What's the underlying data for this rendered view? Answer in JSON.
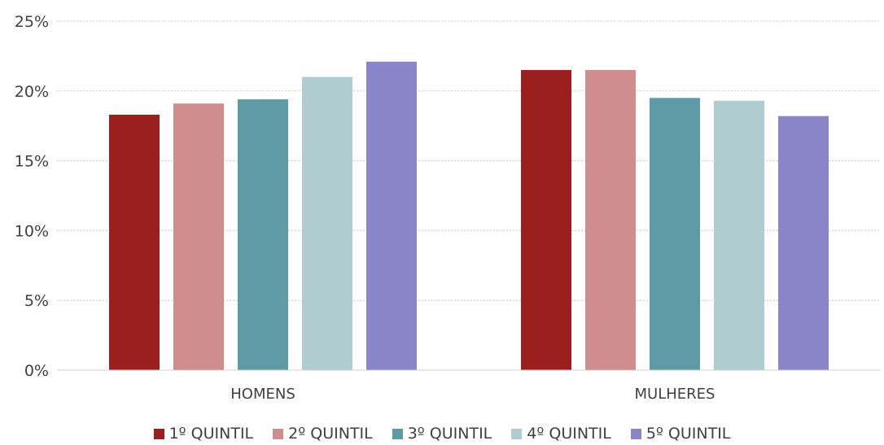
{
  "chart_data": {
    "type": "bar",
    "categories": [
      "HOMENS",
      "MULHERES"
    ],
    "series": [
      {
        "name": "1º QUINTIL",
        "color": "#9B1F1F",
        "values": [
          18.3,
          21.5
        ]
      },
      {
        "name": "2º QUINTIL",
        "color": "#CF8D8B",
        "values": [
          19.1,
          21.5
        ]
      },
      {
        "name": "3º QUINTIL",
        "color": "#5F9BA7",
        "values": [
          19.4,
          19.5
        ]
      },
      {
        "name": "4º QUINTIL",
        "color": "#AFCCD1",
        "values": [
          21.0,
          19.3
        ]
      },
      {
        "name": "5º QUINTIL",
        "color": "#8A85C8",
        "values": [
          22.1,
          18.2
        ]
      }
    ],
    "ylim": [
      0,
      25
    ],
    "yticks": [
      0,
      5,
      10,
      15,
      20,
      25
    ],
    "ytick_labels": [
      "0%",
      "5%",
      "10%",
      "15%",
      "20%",
      "25%"
    ],
    "grid": true,
    "legend_position": "bottom"
  }
}
